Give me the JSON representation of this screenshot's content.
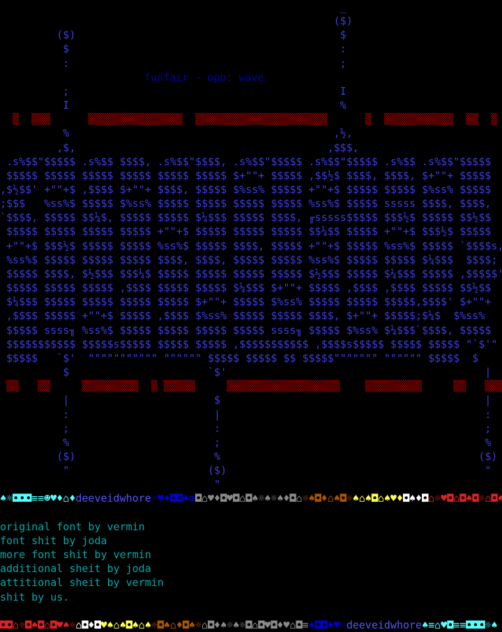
{
  "title": "funfair - opp: wave",
  "art": {
    "color": "#3c3ce0",
    "rows": [
      "                                                      _",
      "                                                     ($)",
      "         ($)                                          $",
      "          $                                           :",
      "          :                                           ;",
      "          ;                                           I",
      "          I                                           %",
      "          %                                          ,½,",
      "         ,$,                                        ,$$$,",
      " .s%$$\"$$$$$ .s%$$ $$$$, .s%$$\"$$$$, .s%$$\"$$$$$ .s%$$\"$$$$$ .s%$$ .s%$$\"$$$$$",
      " $$$$$ $$$$$ $$$$$ $$$$$ $$$$$ $$$$$ $+\"\"+ $$$$$ ,$$½$ $$$$, $$$$, $+\"\"+ $$$$$",
      ",$½$$' +\"\"+$ ,$$$$ $+\"\"+ $$$$, $$$$$ $%ss% $$$$$ +\"\"+$ $$$$$ $$$$$ $%ss% $$$$$",
      ";$$$   %ss%$ $$$$$ $%ss% $$$$$ $$$$$ $$$$$ $$$$$ %ss%$ $$$$$ sssss $$$$, $$$$,",
      "`$$$$, $$$$$ $$¼$, $$$$$ $$$$$ $¼$$$ $$$$$ $$$$, ╓sssss$$$$$ $$$½$ $$$$$ $$½$$",
      " $$$$$ $$$$$ $$$$$ $$$$$ +\"\"+$ $$$$$ $$$$$ $$$$$ $$¼$$ $$$$$ +\"\"+$ $$$½$ $$$$$",
      " +\"\"+$ $$$½$ $$$$$ $$$$$ %ss%$ $$$$$ $$$$, $$$$$ +\"\"+$ $$$$$ %ss%$ $$$$$ `$$$$s,",
      " %ss%$ $$$$$ $$$$$ $$$$$ $$$$, $$$$, $$$$$ $$$$$ %ss%$ $$$$$ $$$$$ $¼$$$  $$$$;",
      " $$$$$ $$$$, $½$$$ $$$¼$ $$$$$ $$$$$ $$$$$ $$$$$ $½$$$ $$$$$ $¼$$$ $$$$$ ,$$$$$'",
      " $$$$$ $$$$$ $$$$$ ,$$$$ $$$$$ $$$$$ $¼$$$ $+\"\"+ $$$$$ ,$$$$ ,$$$$ $$$$$ $$½$$",
      " $¼$$$ $$$$$ $$$$$ $$$$$ $$$$$ $+\"\"+ $$$$$ $%ss% $$$$$ $$$$$ $$$$$,$$$$' $+\"\"+",
      " ,$$$$ $$$$$ +\"\"+$ $$$$$ ,$$$$ $%ss% $$$$$ $$$$$ $$$$, $+\"\"+ $$$$$;$¼$  $%ss%",
      " $$$$$ ssss╖ %ss%$ $$$$$ $$$$$ $$$$$ $$$$$ ssss╖ $$$$$ $%ss% $¼$$$`$$$$, $$$$$",
      " $$$$$$$$$$$ $$$$$s$$$$$ $$$$$ $$$$$ ,$$$$$$$$$$$ ,$$$$s$$$$$ $$$$$ $$$$$ \"`$'\"",
      " $$$$$   `$'  \"\"\"\"\"\"\"\"\"\"\" \"\"\"\"\"\" $$$$$ $$$$$ $$ $$$$$\"\"\"\"\"\"\" \"\"\"\"\"\" $$$$$  $",
      "          $                      `$'                                         |",
      "          |                       $                                          |",
      "          :                       |                                          :",
      "          ;                       :                                          ;",
      "          %                       ;                                          %",
      "         ($)                      %                                         ($)",
      "          \"                      ($)                                         \"",
      "                                  \""
    ]
  },
  "red_bars": {
    "color": "#aa0000",
    "top": "  ▒  ▒▒▒      ▒▒▒▒▒▒▒▒▒▒▒▒▒▒▒  ▒▒▒▒▒▒▒▒▒▒▒▒▒▒▒▒▒▒▒▒▒      ▒  ▒▒▒▒▒▒▒▒▒▒▒  ▒▒  ▒",
    "bottom": " ▒▒   ▒▒     ▒▒▒▒▒▒▒▒▒  ▒ ▒▒▒▒▒     ▒▒▒▒▒▒▒▒▒▒▒▒▒▒▒▒▒▒    ▒▒▒▒▒▒▒▒▒     ▒▒   ▒▒▒"
  },
  "top_strip": [
    {
      "text": "♠☼◘◘◘≡≡☻♥♦⌂♦",
      "color": "#55ffff"
    },
    {
      "text": "deeveidwhore",
      "color": "#5555ff"
    },
    {
      "text": "☼♥♦◘◘♠≡",
      "color": "#0000cc"
    },
    {
      "text": "◘⌂♥♦◘♥◘⌂◘♠☼♠☼♠♦◘⌂",
      "color": "#8a8a8a"
    },
    {
      "text": "☼♠◘♦⌂♠◘☼",
      "color": "#aa5500"
    },
    {
      "text": "♠⌂♠◘⌂♠♥♦",
      "color": "#ffff55"
    },
    {
      "text": "◘♠♦◘",
      "color": "#ffffff"
    },
    {
      "text": "⌂☼♥◘⌂◘♠◘☼⌂◘♠",
      "color": "#dd2222"
    }
  ],
  "bottom_strip": [
    {
      "text": "◘◘⌂☼◘♠◘⌂◘♥♠☼",
      "color": "#dd2222"
    },
    {
      "text": "⌂◘♦◘",
      "color": "#ffffff"
    },
    {
      "text": "♥♠⌂♠◘♠⌂♠",
      "color": "#ffff55"
    },
    {
      "text": "☼◘♠⌂♦◘♠☼",
      "color": "#aa5500"
    },
    {
      "text": "⌂◘♦♠☼♠☼◘⌂◘♥◘♦♥⌂◘≡",
      "color": "#8a8a8a"
    },
    {
      "text": "♠◘◘♦♥☼",
      "color": "#0000cc"
    },
    {
      "text": "deeveidwhore",
      "color": "#5555ff"
    },
    {
      "text": "♠≡⌂♥◘≡≡◘◘◘☼♠",
      "color": "#55ffff"
    }
  ],
  "credits": [
    "original font by vermin",
    "font shit by joda",
    "more font shit by vermin",
    "additional sheit by joda",
    "attitional sheit by vermin",
    "shit by us."
  ]
}
